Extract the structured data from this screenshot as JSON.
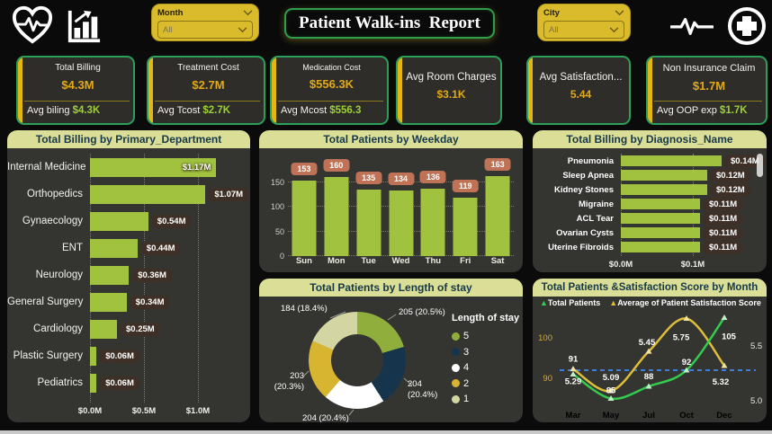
{
  "header": {
    "title": "Patient Walk-ins  Report",
    "month_filter": {
      "label": "Month",
      "value": "All"
    },
    "city_filter": {
      "label": "City",
      "value": "All"
    },
    "icons": [
      "heart-pulse",
      "bar-chart",
      "ecg-pulse",
      "medical-plus"
    ]
  },
  "kpis": [
    {
      "title": "Total Billing",
      "value": "$4.3M",
      "sub_label": "Avg biling",
      "sub_value": "$4.3K"
    },
    {
      "title": "Treatment Cost",
      "value": "$2.7M",
      "sub_label": "Avg Tcost",
      "sub_value": "$2.7K"
    },
    {
      "title": "Medication Cost",
      "value": "$556.3K",
      "sub_label": "Avg Mcost",
      "sub_value": "$556.3"
    },
    {
      "title": "Avg Room Charges",
      "value": "$3.1K"
    },
    {
      "title": "Avg Satisfaction...",
      "value": "5.44"
    },
    {
      "title": "Non Insurance Claim",
      "value": "$1.7M",
      "sub_label": "Avg OOP exp",
      "sub_value": "$1.7K"
    }
  ],
  "colors": {
    "bar_green": "#a1c23e",
    "bubble_brown": "#3e3026",
    "bubble_salmon": "#c07257",
    "gold_text": "#e2a918",
    "green_text": "#9ed038",
    "header_strip": "#dade96",
    "donut_green": "#8fae3b",
    "donut_navy": "#16354d",
    "donut_white": "#ffffff",
    "donut_gold": "#d8b531",
    "donut_khaki": "#d3d6a2",
    "line_green": "#33cc4e",
    "line_yellow": "#ddbe3a",
    "ref_line_blue": "#3f7fd9"
  },
  "chart_data": [
    {
      "type": "bar",
      "orientation": "horizontal",
      "title": "Total Billing by Primary_Department",
      "categories": [
        "Internal Medicine",
        "Orthopedics",
        "Gynaecology",
        "ENT",
        "Neurology",
        "General Surgery",
        "Cardiology",
        "Plastic Surgery",
        "Pediatrics"
      ],
      "values": [
        1.17,
        1.07,
        0.54,
        0.44,
        0.36,
        0.34,
        0.25,
        0.06,
        0.06
      ],
      "labels": [
        "$1.17M",
        "$1.07M",
        "$0.54M",
        "$0.44M",
        "$0.36M",
        "$0.34M",
        "$0.25M",
        "$0.06M",
        "$0.06M"
      ],
      "x_ticks": [
        "$0.0M",
        "$0.5M",
        "$1.0M"
      ],
      "xlim": 1.4,
      "unit": "USD millions"
    },
    {
      "type": "bar",
      "orientation": "vertical",
      "title": "Total Patients by Weekday",
      "categories": [
        "Sun",
        "Mon",
        "Tue",
        "Wed",
        "Thu",
        "Fri",
        "Sat"
      ],
      "values": [
        153,
        160,
        135,
        134,
        136,
        119,
        163
      ],
      "y_ticks": [
        0,
        50,
        100,
        150
      ],
      "ylim": 175
    },
    {
      "type": "bar",
      "orientation": "horizontal",
      "title": "Total Billing by Diagnosis_Name",
      "categories": [
        "Pneumonia",
        "Sleep Apnea",
        "Kidney Stones",
        "Migraine",
        "ACL Tear",
        "Ovarian Cysts",
        "Uterine Fibroids"
      ],
      "values": [
        0.14,
        0.12,
        0.12,
        0.11,
        0.11,
        0.11,
        0.11
      ],
      "labels": [
        "$0.14M",
        "$0.12M",
        "$0.12M",
        "$0.11M",
        "$0.11M",
        "$0.11M",
        "$0.11M"
      ],
      "x_ticks": [
        "$0.0M",
        "$0.1M"
      ],
      "xlim": 0.185,
      "unit": "USD millions"
    },
    {
      "type": "pie",
      "title": "Total Patients by Length of stay",
      "legend_title": "Length of stay",
      "slices": [
        {
          "label": "5",
          "value": 205,
          "pct": 20.5,
          "color": "#8fae3b",
          "callout": "205 (20.5%)"
        },
        {
          "label": "3",
          "value": 204,
          "pct": 20.4,
          "color": "#16354d",
          "callout": "204\n(20.4%)"
        },
        {
          "label": "4",
          "value": 204,
          "pct": 20.4,
          "color": "#ffffff",
          "callout": "204 (20.4%)"
        },
        {
          "label": "2",
          "value": 203,
          "pct": 20.3,
          "color": "#d8b531",
          "callout": "203\n(20.3%)"
        },
        {
          "label": "1",
          "value": 184,
          "pct": 18.4,
          "color": "#d3d6a2",
          "callout": "184 (18.4%)"
        }
      ]
    },
    {
      "type": "line",
      "title": "Total Patients &Satisfaction Score by Month",
      "x": [
        "Mar",
        "May",
        "Jul",
        "Oct",
        "Dec"
      ],
      "series": [
        {
          "name": "Total Patients",
          "axis": "left",
          "color": "#33cc4e",
          "values": [
            91,
            85,
            88,
            92,
            105
          ]
        },
        {
          "name": "Average of Patient Satisfaction Score",
          "axis": "right",
          "color": "#ddbe3a",
          "values": [
            5.29,
            5.09,
            5.45,
            5.75,
            5.32
          ]
        }
      ],
      "left_ticks": [
        90,
        100
      ],
      "right_ticks": [
        "5.0",
        "5.5"
      ],
      "reference_line": 92
    }
  ]
}
